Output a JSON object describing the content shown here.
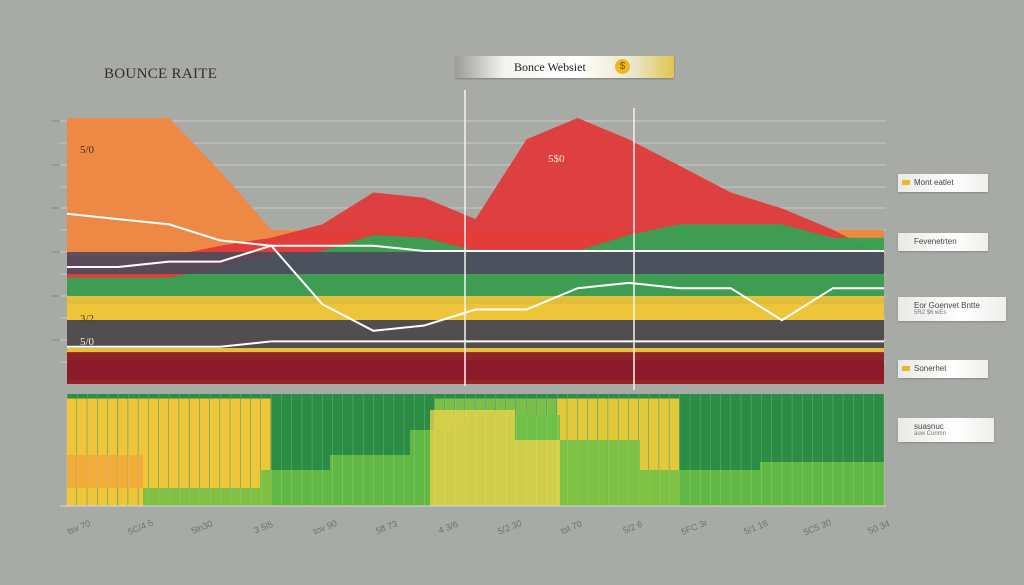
{
  "title": "BOUNCE RAITE",
  "header_pill": {
    "label": "Bonce Websiet"
  },
  "annotations": [
    {
      "text": "5/0"
    },
    {
      "text": "5$0"
    },
    {
      "text": "3/2"
    },
    {
      "text": "5/0"
    }
  ],
  "legend": [
    {
      "label": "Mont eatlet",
      "color": "#e8b928"
    },
    {
      "label": "Fevenetrten",
      "color": ""
    },
    {
      "label": "Eor Goenvet Bntte",
      "sublabel": "5R2 $6 wEs",
      "color": ""
    },
    {
      "label": "Sonerhet",
      "color": "#e8b928"
    },
    {
      "label": "suasnuc",
      "sublabel": "auw Cunmn",
      "color": ""
    }
  ],
  "colors": {
    "background": "#a8aba5",
    "orange": "#f0873e",
    "red": "#e0393b",
    "green": "#35a253",
    "dark_green": "#1f7a3a",
    "yellow": "#efc53a",
    "dark_red": "#8c1a2a",
    "slate": "#4c4a5e"
  },
  "chart_data": {
    "type": "area",
    "title": "BOUNCE RAITE",
    "x_tick_labels": [
      "tsv 70",
      "5C/4 5",
      "5ln30",
      "3 5l5",
      "tov 90",
      "5ff 73",
      "4 3/6",
      "5/2 30",
      "tst 70",
      "5/2 6",
      "5FC 3r",
      "5/1 18",
      "5C5 30",
      "50 34"
    ],
    "bands": [
      {
        "name": "orange",
        "color": "#f0873e",
        "values": [
          100,
          100,
          100,
          80,
          58,
          58,
          58,
          58,
          58,
          58,
          58,
          58,
          58,
          58,
          58,
          58,
          58
        ]
      },
      {
        "name": "red",
        "color": "#e0393b",
        "values": [
          48,
          48,
          48,
          52,
          55,
          60,
          72,
          70,
          62,
          92,
          100,
          92,
          82,
          72,
          66,
          58,
          48
        ]
      },
      {
        "name": "green",
        "color": "#35a253",
        "values": [
          40,
          40,
          40,
          44,
          48,
          50,
          56,
          55,
          50,
          50,
          50,
          56,
          60,
          60,
          60,
          55,
          55
        ]
      },
      {
        "name": "slate",
        "color": "#4c4a5e",
        "values": [
          32,
          32,
          32,
          32,
          32,
          32,
          32,
          32,
          32,
          32,
          32,
          32,
          32,
          32,
          32,
          32,
          32
        ]
      },
      {
        "name": "yellow",
        "color": "#efc53a",
        "values": [
          30,
          30,
          30,
          30,
          30,
          30,
          30,
          30,
          30,
          30,
          30,
          30,
          30,
          30,
          30,
          30,
          30
        ]
      },
      {
        "name": "dark_red",
        "color": "#8c1a2a",
        "values": [
          12,
          12,
          12,
          12,
          12,
          12,
          12,
          12,
          12,
          12,
          12,
          12,
          12,
          12,
          12,
          12,
          12
        ]
      }
    ],
    "lines": [
      {
        "name": "line-a",
        "color": "#ffffff",
        "values": [
          64,
          62,
          60,
          54,
          52,
          52,
          52,
          50,
          50,
          50,
          50,
          50,
          50,
          50,
          50,
          50,
          50
        ]
      },
      {
        "name": "line-b",
        "color": "#ffffff",
        "values": [
          44,
          44,
          46,
          46,
          52,
          30,
          20,
          22,
          28,
          28,
          36,
          38,
          36,
          36,
          24,
          36,
          36
        ]
      },
      {
        "name": "line-c",
        "color": "#ffffff",
        "values": [
          14,
          14,
          14,
          14,
          16,
          16,
          16,
          16,
          16,
          16,
          16,
          16,
          16,
          16,
          16,
          16,
          16
        ]
      }
    ],
    "bars": {
      "count": 80,
      "values": [
        96,
        96,
        96,
        96,
        96,
        96,
        96,
        96,
        96,
        96,
        96,
        96,
        96,
        96,
        96,
        96,
        96,
        96,
        96,
        96,
        96,
        96,
        96,
        96,
        96,
        96,
        96,
        96,
        96,
        96,
        96,
        96,
        96,
        96,
        96,
        96,
        96,
        96,
        96,
        96,
        96,
        96,
        96,
        96,
        96,
        96,
        96,
        96,
        96,
        96,
        96,
        96,
        96,
        96,
        96,
        96,
        96,
        96,
        96,
        96,
        96,
        96,
        96,
        96,
        96,
        96,
        96,
        96,
        96,
        96,
        96,
        96,
        96,
        96,
        96,
        96,
        96,
        96,
        96,
        96
      ],
      "segments": [
        {
          "from": 0,
          "to": 20,
          "color": "#efc53a"
        },
        {
          "from": 20,
          "to": 36,
          "color": "#2d8c44"
        },
        {
          "from": 36,
          "to": 48,
          "color": "#7bbf4a"
        },
        {
          "from": 48,
          "to": 60,
          "color": "#e3c93a"
        },
        {
          "from": 60,
          "to": 80,
          "color": "#2d8c44"
        }
      ]
    },
    "grid": true,
    "legend_position": "right"
  }
}
